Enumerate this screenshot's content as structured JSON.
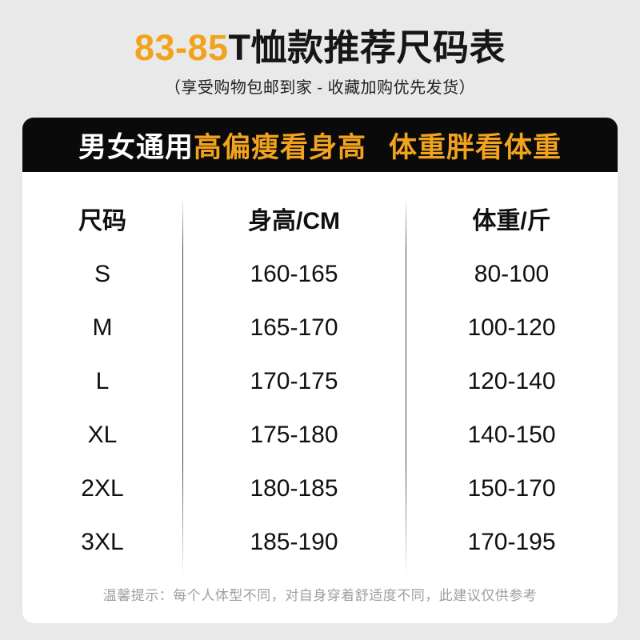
{
  "colors": {
    "page_bg": "#e9e9e9",
    "accent_orange": "#f2a31e",
    "banner_bg": "#0a0a0a",
    "card_bg": "#ffffff",
    "note_gray": "#9e9e9e"
  },
  "header": {
    "title_highlight": "83-85",
    "title_rest": "T恤款推荐尺码表",
    "subtitle": "（享受购物包邮到家 - 收藏加购优先发货）"
  },
  "banner": {
    "unisex_label": "男女通用",
    "height_rule": "高偏瘦看身高",
    "weight_rule": "体重胖看体重"
  },
  "chart_data": {
    "type": "table",
    "title": "83-85T恤款推荐尺码表",
    "columns": [
      "尺码",
      "身高/CM",
      "体重/斤"
    ],
    "rows": [
      [
        "S",
        "160-165",
        "80-100"
      ],
      [
        "M",
        "165-170",
        "100-120"
      ],
      [
        "L",
        "170-175",
        "120-140"
      ],
      [
        "XL",
        "175-180",
        "140-150"
      ],
      [
        "2XL",
        "180-185",
        "150-170"
      ],
      [
        "3XL",
        "185-190",
        "170-195"
      ]
    ]
  },
  "footer": {
    "note": "温馨提示：每个人体型不同，对自身穿着舒适度不同，此建议仅供参考"
  }
}
